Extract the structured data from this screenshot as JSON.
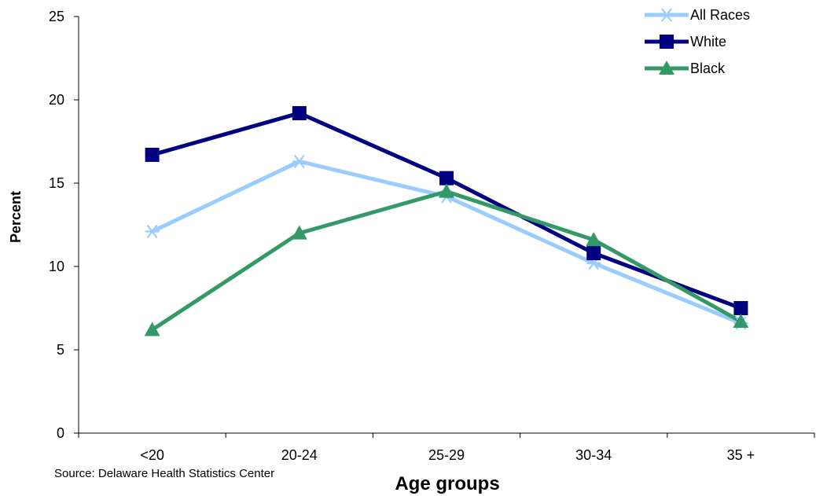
{
  "chart_data": {
    "type": "line",
    "title": "",
    "xlabel": "Age groups",
    "ylabel": "Percent",
    "categories": [
      "<20",
      "20-24",
      "25-29",
      "30-34",
      "35 +"
    ],
    "ylim": [
      0,
      25
    ],
    "yticks": [
      "0",
      "5",
      "10",
      "15",
      "20",
      "25"
    ],
    "grid": false,
    "legend_position": "top-right",
    "series": [
      {
        "name": "All Races",
        "values": [
          12.1,
          16.3,
          14.2,
          10.2,
          6.6
        ],
        "color": "#99ccff",
        "marker": "asterisk"
      },
      {
        "name": "White",
        "values": [
          16.7,
          19.2,
          15.3,
          10.8,
          7.5
        ],
        "color": "#000080",
        "marker": "square"
      },
      {
        "name": "Black",
        "values": [
          6.2,
          12.0,
          14.5,
          11.6,
          6.7
        ],
        "color": "#339966",
        "marker": "triangle"
      }
    ],
    "source": "Source: Delaware Health Statistics Center"
  }
}
